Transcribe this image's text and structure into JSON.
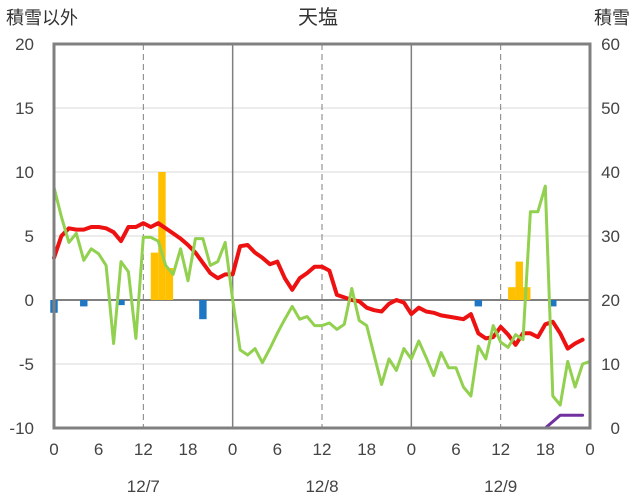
{
  "chart_data": {
    "type": "line",
    "title": "天塩",
    "ylabel_left": "積雪以外",
    "ylabel_right": "積雪",
    "ylim_left": [
      -10,
      20
    ],
    "ylim_right": [
      0,
      60
    ],
    "left_ticks": [
      "20",
      "15",
      "10",
      "5",
      "0",
      "-5",
      "-10"
    ],
    "right_ticks": [
      "60",
      "50",
      "40",
      "30",
      "20",
      "10",
      "0"
    ],
    "x_ticks": [
      "0",
      "6",
      "12",
      "18",
      "0",
      "6",
      "12",
      "18",
      "0",
      "6",
      "12",
      "18",
      "0"
    ],
    "day_labels": [
      "12/7",
      "12/8",
      "12/9"
    ],
    "x_range_hours": [
      0,
      72
    ],
    "grid": true,
    "colors": {
      "red_line": "#ee1111",
      "green_line": "#92d050",
      "orange_bars": "#ffc000",
      "blue_bars": "#1f77c4",
      "purple_line": "#7030a0",
      "frame": "#808080"
    },
    "series": [
      {
        "type": "line",
        "color": "#ee1111",
        "axis": "left",
        "x": [
          0,
          1,
          2,
          3,
          4,
          5,
          6,
          7,
          8,
          9,
          10,
          11,
          12,
          13,
          14,
          15,
          16,
          17,
          18,
          19,
          20,
          21,
          22,
          23,
          24,
          25,
          26,
          27,
          28,
          29,
          30,
          31,
          32,
          33,
          34,
          35,
          36,
          37,
          38,
          39,
          40,
          41,
          42,
          43,
          44,
          45,
          46,
          47,
          48,
          49,
          50,
          51,
          52,
          53,
          54,
          55,
          56,
          57,
          58,
          59,
          60,
          61,
          62,
          63,
          64,
          65,
          66,
          67,
          68,
          69,
          70,
          71
        ],
        "y": [
          3.3,
          5,
          5.6,
          5.5,
          5.5,
          5.7,
          5.7,
          5.6,
          5.3,
          4.6,
          5.7,
          5.7,
          6.0,
          5.7,
          6.0,
          5.6,
          5.2,
          4.8,
          4.3,
          3.7,
          2.9,
          2.1,
          1.7,
          2.0,
          2.0,
          4.2,
          4.3,
          3.7,
          3.3,
          2.8,
          3.0,
          1.7,
          0.8,
          1.7,
          2.1,
          2.6,
          2.6,
          2.3,
          0.4,
          0.2,
          0.0,
          -0.1,
          -0.6,
          -0.8,
          -0.9,
          -0.3,
          0.0,
          -0.2,
          -1.1,
          -0.6,
          -0.9,
          -1.0,
          -1.2,
          -1.3,
          -1.4,
          -1.5,
          -1.1,
          -2.6,
          -3.0,
          -2.9,
          -2.1,
          -2.7,
          -3.5,
          -2.6,
          -2.6,
          -2.9,
          -1.9,
          -1.7,
          -2.6,
          -3.8,
          -3.4,
          -3.1
        ]
      },
      {
        "type": "line",
        "color": "#92d050",
        "axis": "left",
        "x": [
          0,
          1,
          2,
          3,
          4,
          5,
          6,
          7,
          8,
          9,
          10,
          11,
          12,
          13,
          14,
          15,
          16,
          17,
          18,
          19,
          20,
          21,
          22,
          23,
          24,
          25,
          26,
          27,
          28,
          29,
          30,
          31,
          32,
          33,
          34,
          35,
          36,
          37,
          38,
          39,
          40,
          41,
          42,
          43,
          44,
          45,
          46,
          47,
          48,
          49,
          50,
          51,
          52,
          53,
          54,
          55,
          56,
          57,
          58,
          59,
          60,
          61,
          62,
          63,
          64,
          65,
          66,
          67,
          68,
          69,
          70,
          71,
          72
        ],
        "y": [
          8.8,
          6.5,
          4.5,
          5.2,
          3.1,
          4.0,
          3.6,
          2.7,
          -3.4,
          3.0,
          2.2,
          -3.0,
          4.9,
          4.9,
          4.6,
          2.7,
          2.0,
          4.0,
          1.5,
          4.8,
          4.8,
          2.7,
          3.0,
          4.5,
          0.0,
          -3.9,
          -4.3,
          -3.8,
          -4.9,
          -3.8,
          -2.6,
          -1.5,
          -0.5,
          -1.5,
          -1.3,
          -2.0,
          -2.0,
          -1.8,
          -2.3,
          -1.9,
          0.9,
          -1.6,
          -2.0,
          -4.3,
          -6.6,
          -4.6,
          -5.5,
          -3.8,
          -4.6,
          -3.2,
          -4.5,
          -5.9,
          -4.1,
          -5.3,
          -5.3,
          -6.8,
          -7.5,
          -3.6,
          -4.6,
          -2.0,
          -3.3,
          -3.7,
          -2.7,
          -3.1,
          6.9,
          6.9,
          8.9,
          -7.5,
          -8.2,
          -4.8,
          -6.8,
          -5.0,
          -4.8
        ]
      },
      {
        "type": "bar",
        "color": "#ffc000",
        "axis": "left",
        "x": [
          13.5,
          14.5,
          15.5,
          61.5,
          62.5,
          63.5
        ],
        "y": [
          3.7,
          10.0,
          2.5,
          1.0,
          3.0,
          1.0
        ]
      },
      {
        "type": "bar",
        "color": "#1f77c4",
        "axis": "left",
        "x": [
          0,
          4,
          9,
          20,
          57,
          67
        ],
        "y": [
          -1.0,
          -0.5,
          -0.4,
          -1.5,
          -0.5,
          -0.5
        ]
      },
      {
        "type": "line",
        "color": "#7030a0",
        "axis": "right",
        "x": [
          0,
          66,
          67,
          68,
          69,
          70,
          71
        ],
        "y": [
          0,
          0,
          1.0,
          2.0,
          2.0,
          2.0,
          2.0
        ]
      }
    ]
  }
}
